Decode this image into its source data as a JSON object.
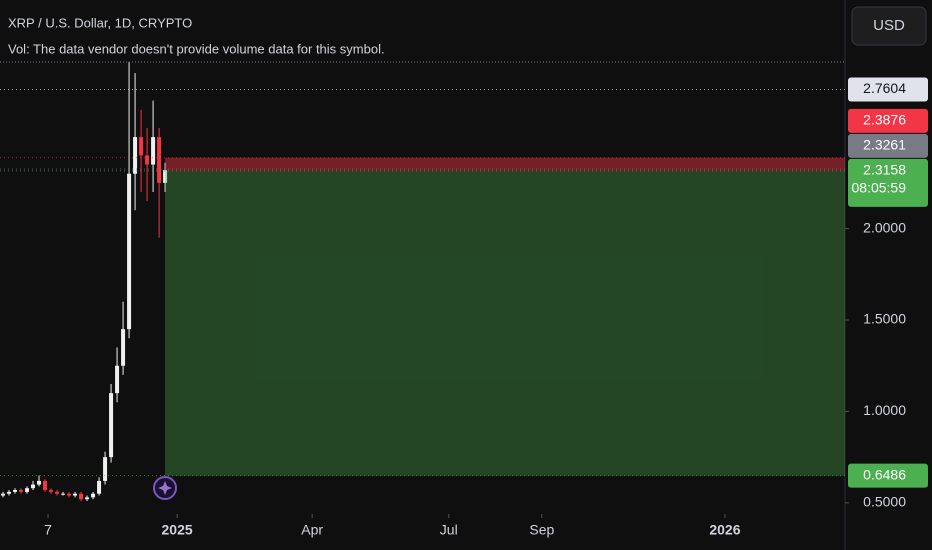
{
  "chart_data": {
    "type": "candlestick",
    "title": "XRP / U.S. Dollar, 1D, CRYPTO",
    "subtitle": "Vol: The data vendor doesn't provide volume data for this symbol.",
    "currency": "USD",
    "x": [
      -116,
      -112,
      -108,
      -104,
      -100,
      -96,
      -92,
      -88,
      -84,
      -80,
      -76,
      -72,
      -68,
      -64,
      -60,
      -56,
      -52,
      -48,
      -44,
      -40,
      -36,
      -32,
      -28,
      -24,
      -20,
      -16,
      -12,
      -8
    ],
    "open": [
      0.54,
      0.55,
      0.56,
      0.57,
      0.56,
      0.58,
      0.6,
      0.62,
      0.57,
      0.56,
      0.55,
      0.55,
      0.54,
      0.55,
      0.52,
      0.53,
      0.55,
      0.62,
      0.75,
      1.1,
      1.25,
      1.45,
      2.3,
      2.5,
      2.4,
      2.35,
      2.5,
      2.25
    ],
    "high": [
      0.56,
      0.57,
      0.58,
      0.58,
      0.59,
      0.62,
      0.65,
      0.63,
      0.58,
      0.57,
      0.56,
      0.56,
      0.56,
      0.56,
      0.54,
      0.56,
      0.64,
      0.78,
      1.15,
      1.35,
      1.6,
      2.91,
      2.85,
      2.65,
      2.55,
      2.7,
      2.55,
      2.36
    ],
    "low": [
      0.53,
      0.54,
      0.55,
      0.55,
      0.55,
      0.57,
      0.59,
      0.56,
      0.55,
      0.54,
      0.54,
      0.53,
      0.53,
      0.51,
      0.51,
      0.52,
      0.54,
      0.6,
      0.72,
      1.05,
      1.2,
      1.4,
      2.1,
      2.2,
      2.15,
      2.2,
      1.95,
      2.2
    ],
    "close": [
      0.55,
      0.56,
      0.57,
      0.56,
      0.58,
      0.6,
      0.62,
      0.57,
      0.56,
      0.55,
      0.55,
      0.54,
      0.55,
      0.52,
      0.53,
      0.55,
      0.62,
      0.75,
      1.1,
      1.25,
      1.45,
      2.3,
      2.5,
      2.4,
      2.35,
      2.5,
      2.25,
      2.32
    ],
    "up_color": "#f0f0f0",
    "down_color": "#f23645",
    "xlim": [
      -118,
      445
    ],
    "xticks": [
      {
        "value": -86,
        "label": "7"
      },
      {
        "value": 0,
        "label": "2025"
      },
      {
        "value": 90,
        "label": "Apr"
      },
      {
        "value": 181,
        "label": "Jul"
      },
      {
        "value": 243,
        "label": "Sep"
      },
      {
        "value": 365,
        "label": "2026"
      }
    ],
    "ylim": [
      0.45,
      3.25
    ],
    "yticks": [
      {
        "value": 2,
        "label": "2.0000"
      },
      {
        "value": 1.5,
        "label": "1.5000"
      },
      {
        "value": 1,
        "label": "1.0000"
      },
      {
        "value": 0.5,
        "label": "0.5000"
      }
    ],
    "position": {
      "start": -8,
      "entry": 2.3158,
      "stop": 2.3876,
      "target": 0.6486
    },
    "price_labels": [
      {
        "value": 2.7604,
        "color": "#e0e3eb",
        "text_color": "#131722"
      },
      {
        "value": 2.3876,
        "color": "#f23645",
        "text_color": "#ffffff"
      },
      {
        "value": 2.3261,
        "color": "#787b86",
        "text_color": "#ffffff"
      },
      {
        "value": 2.3158,
        "color": "#4caf50",
        "text_color": "#ffffff",
        "countdown": "08:05:59"
      },
      {
        "value": 0.6486,
        "color": "#4caf50",
        "text_color": "#ffffff"
      }
    ]
  }
}
